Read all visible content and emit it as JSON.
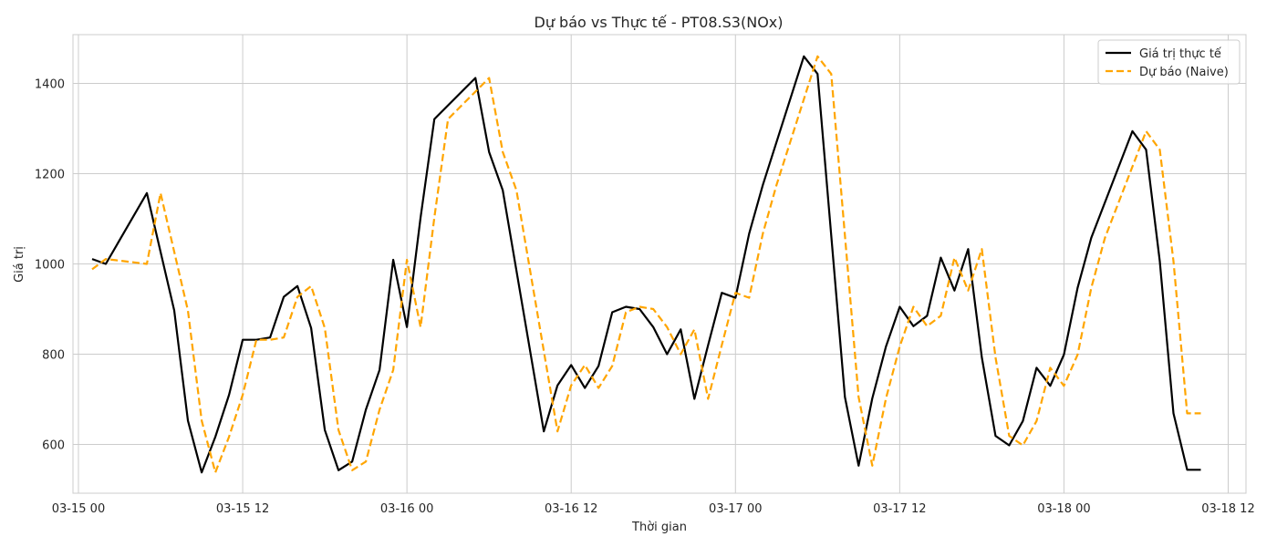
{
  "chart_data": {
    "type": "line",
    "title": "Dự báo vs Thực tế - PT08.S3(NOx)",
    "xlabel": "Thời gian",
    "ylabel": "Giá trị",
    "xlim": [
      -0.4,
      85.3
    ],
    "ylim": [
      492,
      1508
    ],
    "x_ticks": [
      {
        "hour": 0,
        "label": "03-15 00"
      },
      {
        "hour": 12,
        "label": "03-15 12"
      },
      {
        "hour": 24,
        "label": "03-16 00"
      },
      {
        "hour": 36,
        "label": "03-16 12"
      },
      {
        "hour": 48,
        "label": "03-17 00"
      },
      {
        "hour": 60,
        "label": "03-17 12"
      },
      {
        "hour": 72,
        "label": "03-18 00"
      },
      {
        "hour": 84,
        "label": "03-18 12"
      }
    ],
    "y_ticks": [
      600,
      800,
      1000,
      1200,
      1400
    ],
    "grid": true,
    "legend_position": "top-right",
    "x": [
      1,
      2,
      5,
      7,
      8,
      9,
      10,
      11,
      12,
      13,
      14,
      15,
      16,
      17,
      18,
      19,
      20,
      21,
      22,
      23,
      24,
      25,
      26,
      29,
      30,
      31,
      34,
      35,
      36,
      37,
      38,
      39,
      40,
      41,
      42,
      43,
      44,
      45,
      46,
      47,
      48,
      49,
      50,
      53,
      54,
      56,
      57,
      58,
      59,
      60,
      61,
      62,
      63,
      64,
      65,
      66,
      67,
      68,
      69,
      70,
      71,
      72,
      73,
      74,
      77,
      78,
      79,
      80,
      81,
      82
    ],
    "series": [
      {
        "name": "Giá trị thực tế",
        "color": "#000000",
        "dash": "solid",
        "values": [
          1011,
          1000,
          1157,
          897,
          653,
          538,
          617,
          710,
          832,
          832,
          837,
          927,
          951,
          858,
          632,
          543,
          562,
          677,
          765,
          1009,
          860,
          1103,
          1321,
          1412,
          1248,
          1163,
          629,
          731,
          776,
          725,
          774,
          893,
          905,
          900,
          860,
          800,
          855,
          701,
          820,
          936,
          925,
          1067,
          1175,
          1460,
          1421,
          705,
          553,
          702,
          817,
          905,
          862,
          885,
          1014,
          941,
          1033,
          793,
          619,
          598,
          652,
          770,
          730,
          799,
          947,
          1058,
          1294,
          1253,
          1006,
          669,
          544,
          544
        ],
        "forecast_x": [
          1,
          2,
          5,
          6,
          7,
          8,
          9,
          10,
          11,
          12,
          13,
          14,
          15,
          16,
          17,
          18,
          19,
          20,
          21,
          22,
          23,
          24,
          25,
          26,
          29,
          30,
          31,
          32,
          33,
          34,
          35,
          36,
          37,
          38,
          39,
          40,
          41,
          42,
          43,
          44,
          45,
          46,
          47,
          48,
          49,
          50,
          53,
          54,
          55,
          56,
          57,
          58,
          59,
          60,
          61,
          62,
          63,
          64,
          65,
          66,
          67,
          68,
          69,
          70,
          71,
          72,
          73,
          74,
          77,
          78,
          79,
          80,
          81,
          82
        ]
      },
      {
        "name": "Dự báo (Naive)",
        "color": "#ffa500",
        "dash": "dashed",
        "x": [
          1,
          2,
          5,
          6,
          8,
          9,
          10,
          11,
          12,
          13,
          14,
          15,
          16,
          17,
          18,
          19,
          20,
          21,
          22,
          23,
          24,
          25,
          26,
          27,
          30,
          31,
          32,
          35,
          36,
          37,
          38,
          39,
          40,
          41,
          42,
          43,
          44,
          45,
          46,
          47,
          48,
          49,
          50,
          51,
          54,
          55,
          57,
          58,
          59,
          60,
          61,
          62,
          63,
          64,
          65,
          66,
          67,
          68,
          69,
          70,
          71,
          72,
          73,
          74,
          75,
          78,
          79,
          80,
          81,
          82
        ],
        "values": [
          988,
          1011,
          1000,
          1157,
          897,
          653,
          538,
          617,
          710,
          832,
          832,
          837,
          927,
          951,
          858,
          632,
          543,
          562,
          677,
          765,
          1009,
          860,
          1103,
          1321,
          1412,
          1248,
          1163,
          629,
          731,
          776,
          725,
          774,
          893,
          905,
          900,
          860,
          800,
          855,
          701,
          820,
          936,
          925,
          1067,
          1175,
          1460,
          1421,
          705,
          553,
          702,
          817,
          905,
          862,
          885,
          1014,
          941,
          1033,
          793,
          619,
          598,
          652,
          770,
          730,
          799,
          947,
          1058,
          1294,
          1253,
          1006,
          669,
          669
        ]
      }
    ]
  }
}
